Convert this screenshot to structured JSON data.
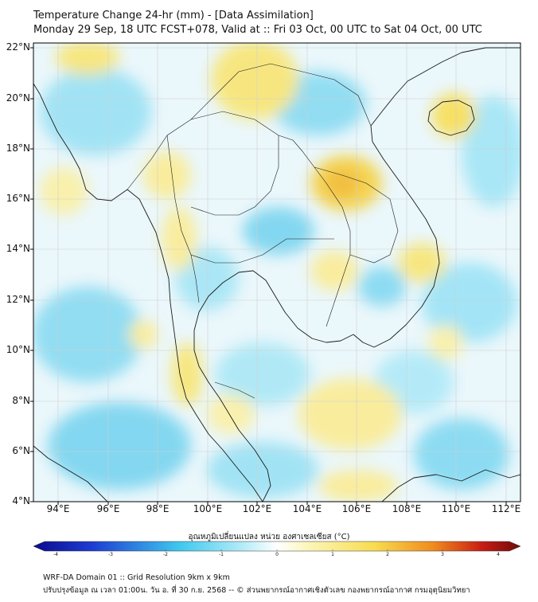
{
  "title": {
    "line1": "Temperature Change 24-hr (mm) - [Data Assimilation]",
    "line2": "Monday 29 Sep, 18 UTC FCST+078, Valid at :: Fri 03 Oct, 00 UTC to Sat 04 Oct, 00 UTC"
  },
  "map": {
    "lat_labels": [
      "22°N",
      "20°N",
      "18°N",
      "16°N",
      "14°N",
      "12°N",
      "10°N",
      "8°N",
      "6°N",
      "4°N"
    ],
    "lon_labels": [
      "94°E",
      "96°E",
      "98°E",
      "100°E",
      "102°E",
      "104°E",
      "106°E",
      "108°E",
      "110°E",
      "112°E"
    ],
    "lat_range": [
      4,
      22.3
    ],
    "lon_range": [
      93,
      112.6
    ]
  },
  "colorbar": {
    "title": "อุณหภูมิเปลี่ยนแปลง หน่วย องศาเซลเซียส (°C)",
    "ticks": [
      "-4",
      "-3",
      "-2",
      "-1",
      "0",
      "1",
      "2",
      "3",
      "4"
    ],
    "colors": {
      "deep_blue": "#0a0a8c",
      "blue": "#1e3cd2",
      "cyan": "#3ec8ee",
      "pale_cyan": "#b4ecf8",
      "white": "#ffffff",
      "pale_yellow": "#fcf4b4",
      "yellow": "#f8dc50",
      "orange": "#f08c1e",
      "red": "#c81e14",
      "dark_red": "#6e0a0a"
    }
  },
  "footer": {
    "line1": "WRF-DA Domain 01 :: Grid Resolution 9km x 9km",
    "line2": "ปรับปรุงข้อมูล ณ เวลา 01:00น. วัน อ. ที่ 30 ก.ย. 2568 -- © ส่วนพยากรณ์อากาศเชิงตัวเลข กองพยากรณ์อากาศ กรมอุตุนิยมวิทยา"
  }
}
